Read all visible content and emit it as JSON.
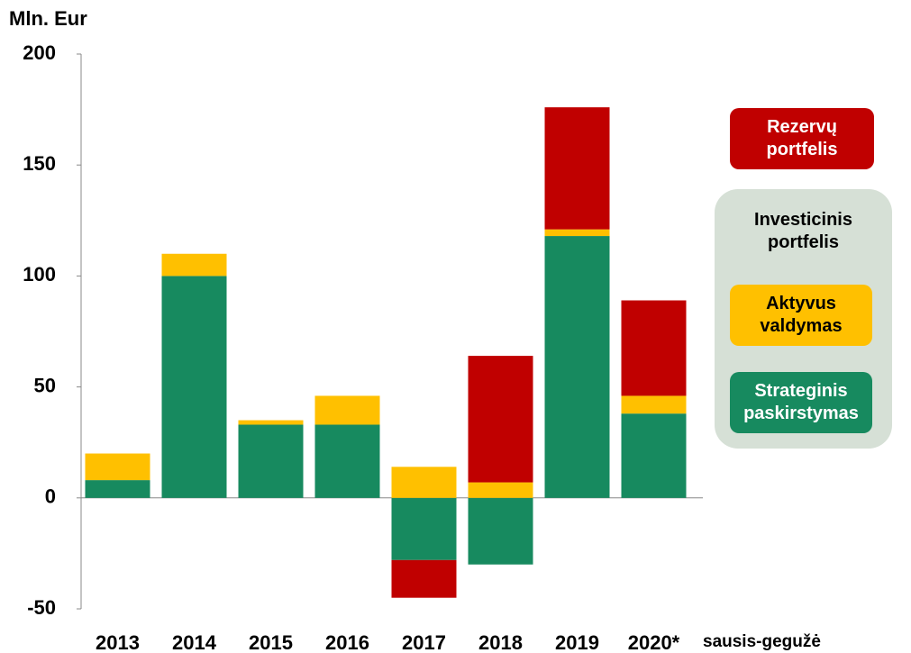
{
  "chart_data": {
    "type": "stacked_bar",
    "y_label": "Mln. Eur",
    "categories": [
      "2013",
      "2014",
      "2015",
      "2016",
      "2017",
      "2018",
      "2019",
      "2020*"
    ],
    "x_note": "sausis-gegužė",
    "series": [
      {
        "name": "Strateginis paskirstymas",
        "color": "#178a5f",
        "values": [
          8,
          100,
          33,
          33,
          -28,
          -30,
          118,
          38
        ]
      },
      {
        "name": "Aktyvus valdymas",
        "color": "#ffc000",
        "values": [
          12,
          10,
          2,
          13,
          14,
          7,
          3,
          8
        ]
      },
      {
        "name": "Rezervų portfelis",
        "color": "#c00000",
        "values": [
          0,
          0,
          0,
          0,
          -17,
          57,
          55,
          43
        ]
      }
    ],
    "legend_group": "Investicinis portfelis",
    "ylim": [
      -50,
      200
    ],
    "yticks": [
      -50,
      0,
      50,
      100,
      150,
      200
    ]
  }
}
